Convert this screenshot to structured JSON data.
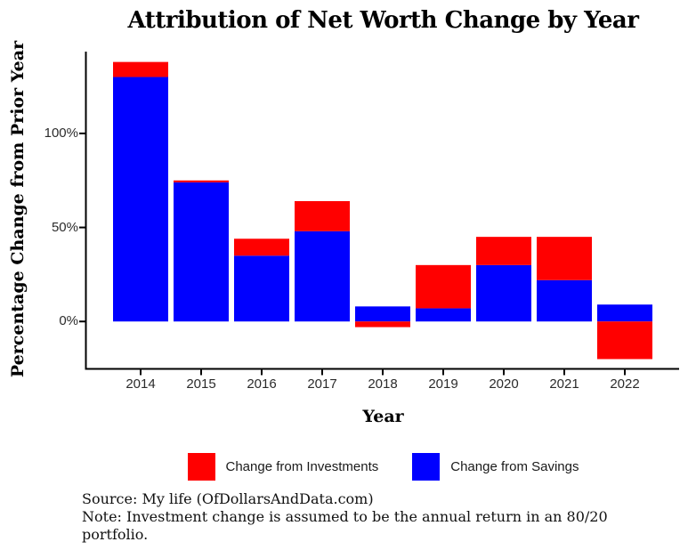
{
  "title": "Attribution of Net Worth Change by Year",
  "axes": {
    "x_label": "Year",
    "y_label": "Percentage Change from Prior Year"
  },
  "legend": {
    "items": [
      {
        "label": "Change from Investments",
        "color": "#FF0000"
      },
      {
        "label": "Change from Savings",
        "color": "#0000FF"
      }
    ]
  },
  "footer": {
    "line1": "Source: My life (OfDollarsAndData.com)",
    "line2": "Note: Investment change is assumed to be the annual return in an 80/20",
    "line3": "portfolio."
  },
  "chart_data": {
    "type": "bar",
    "stacked": true,
    "title": "Attribution of Net Worth Change by Year",
    "xlabel": "Year",
    "ylabel": "Percentage Change from Prior Year",
    "categories": [
      "2014",
      "2015",
      "2016",
      "2017",
      "2018",
      "2019",
      "2020",
      "2021",
      "2022"
    ],
    "series": [
      {
        "name": "Change from Savings",
        "color": "#0000FF",
        "values": [
          130,
          74,
          35,
          48,
          8,
          7,
          30,
          22,
          9
        ]
      },
      {
        "name": "Change from Investments",
        "color": "#FF0000",
        "values": [
          8,
          1,
          9,
          16,
          -3,
          23,
          15,
          23,
          -20
        ]
      }
    ],
    "y_ticks": [
      {
        "value": 0,
        "label": "0%"
      },
      {
        "value": 50,
        "label": "50%"
      },
      {
        "value": 100,
        "label": "100%"
      }
    ],
    "ylim": [
      -24.5,
      143.5
    ],
    "grid": false,
    "legend_position": "bottom",
    "units": "percent"
  }
}
